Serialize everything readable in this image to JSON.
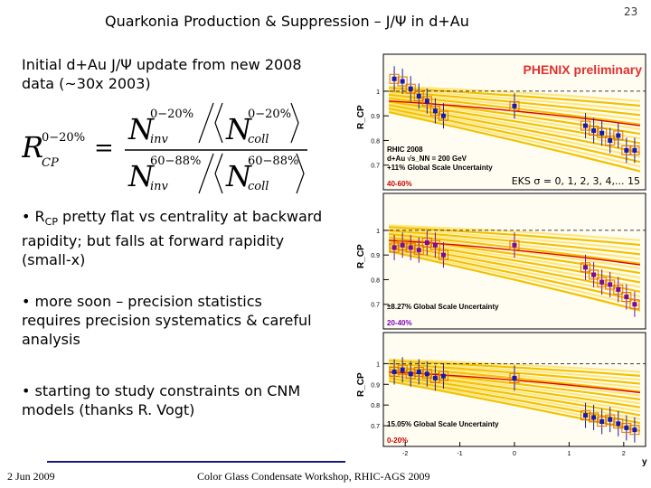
{
  "slide": {
    "title": "Quarkonia Production & Suppression – J/Ψ in d+Au",
    "page_number": "23",
    "intro": "Initial d+Au J/Ψ update from new 2008 data (~30x 2003)",
    "bullets": [
      {
        "pre": "• R",
        "sub": "CP",
        "post": " pretty flat vs centrality at backward rapidity; but falls at forward rapidity (small-x)"
      },
      {
        "pre": "• more soon – precision statistics requires precision systematics & careful analysis",
        "sub": "",
        "post": ""
      },
      {
        "pre": "• starting to study constraints on CNM models (thanks R. Vogt)",
        "sub": "",
        "post": ""
      }
    ],
    "footer_left": "2 Jun 2009",
    "footer_center": "Color Glass Condensate Workshop, RHIC-AGS 2009"
  },
  "formula": {
    "lhs_main": "R",
    "lhs_sup": "0−20%",
    "lhs_sub": "CP",
    "eq": "=",
    "num_n": "N",
    "num_sup": "0−20%",
    "num_sub": "inv",
    "num_ncoll_sup": "0−20%",
    "num_ncoll_sub": "coll",
    "den_n": "N",
    "den_sup": "60−88%",
    "den_sub": "inv",
    "den_ncoll_sup": "60−88%",
    "den_ncoll_sub": "coll"
  },
  "colors": {
    "band": "#f2c200",
    "band_light": "#ffe680",
    "red_line": "#e00000",
    "blue_marker": "#1a1aaa",
    "purple_marker": "#7a0a9a",
    "label_red": "#cc0000",
    "label_purple": "#8000c0"
  },
  "chart_data": [
    {
      "type": "scatter",
      "ylabel": "R_CP",
      "xlabel": "y",
      "xlim": [
        -2.4,
        2.4
      ],
      "ylim": [
        0.6,
        1.15
      ],
      "yticks": [
        0.7,
        0.8,
        0.9,
        1
      ],
      "ytick_labels": [
        "0.7",
        "0.8",
        "0.9",
        "1"
      ],
      "corner_label": "PHENIX preliminary",
      "model_label": "EKS σ = 0, 1, 2, 3, 4,... 15",
      "legend_lines": [
        "RHIC 2008",
        "d+Au √s_NN = 200 GeV",
        "+11% Global Scale Uncertainty"
      ],
      "centrality": "40-60%",
      "marker_color": "#1a1aaa",
      "points": [
        {
          "x": -2.2,
          "y": 1.05
        },
        {
          "x": -2.05,
          "y": 1.04
        },
        {
          "x": -1.9,
          "y": 1.01
        },
        {
          "x": -1.75,
          "y": 0.98
        },
        {
          "x": -1.6,
          "y": 0.96
        },
        {
          "x": -1.45,
          "y": 0.92
        },
        {
          "x": -1.3,
          "y": 0.9
        },
        {
          "x": 0.0,
          "y": 0.94
        },
        {
          "x": 1.3,
          "y": 0.86
        },
        {
          "x": 1.45,
          "y": 0.84
        },
        {
          "x": 1.6,
          "y": 0.83
        },
        {
          "x": 1.75,
          "y": 0.8
        },
        {
          "x": 1.9,
          "y": 0.82
        },
        {
          "x": 2.05,
          "y": 0.76
        },
        {
          "x": 2.2,
          "y": 0.76
        }
      ]
    },
    {
      "type": "scatter",
      "ylabel": "R_CP",
      "xlim": [
        -2.4,
        2.4
      ],
      "ylim": [
        0.6,
        1.15
      ],
      "yticks": [
        0.7,
        0.8,
        0.9,
        1
      ],
      "ytick_labels": [
        "0.7",
        "0.8",
        "0.9",
        "1"
      ],
      "legend_lines": [
        "±8.27% Global Scale Uncertainty"
      ],
      "centrality": "20-40%",
      "marker_color": "#7a0a9a",
      "points": [
        {
          "x": -2.2,
          "y": 0.93
        },
        {
          "x": -2.05,
          "y": 0.94
        },
        {
          "x": -1.9,
          "y": 0.93
        },
        {
          "x": -1.75,
          "y": 0.92
        },
        {
          "x": -1.6,
          "y": 0.95
        },
        {
          "x": -1.45,
          "y": 0.94
        },
        {
          "x": -1.3,
          "y": 0.9
        },
        {
          "x": 0.0,
          "y": 0.94
        },
        {
          "x": 1.3,
          "y": 0.85
        },
        {
          "x": 1.45,
          "y": 0.82
        },
        {
          "x": 1.6,
          "y": 0.79
        },
        {
          "x": 1.75,
          "y": 0.78
        },
        {
          "x": 1.9,
          "y": 0.76
        },
        {
          "x": 2.05,
          "y": 0.73
        },
        {
          "x": 2.2,
          "y": 0.7
        }
      ]
    },
    {
      "type": "scatter",
      "ylabel": "R_CP",
      "xlim": [
        -2.4,
        2.4
      ],
      "ylim": [
        0.6,
        1.15
      ],
      "yticks": [
        0.7,
        0.8,
        0.9,
        1
      ],
      "ytick_labels": [
        "0.7",
        "0.8",
        "0.9",
        "1"
      ],
      "xticks": [
        -2,
        -1,
        0,
        1,
        2
      ],
      "xtick_labels": [
        "-2",
        "-1",
        "0",
        "1",
        "2"
      ],
      "legend_lines": [
        "15.05% Global Scale Uncertainty"
      ],
      "centrality": "0-20%",
      "marker_color": "#1a1aaa",
      "points": [
        {
          "x": -2.2,
          "y": 0.96
        },
        {
          "x": -2.05,
          "y": 0.97
        },
        {
          "x": -1.9,
          "y": 0.95
        },
        {
          "x": -1.75,
          "y": 0.96
        },
        {
          "x": -1.6,
          "y": 0.95
        },
        {
          "x": -1.45,
          "y": 0.93
        },
        {
          "x": -1.3,
          "y": 0.94
        },
        {
          "x": 0.0,
          "y": 0.93
        },
        {
          "x": 1.3,
          "y": 0.75
        },
        {
          "x": 1.45,
          "y": 0.74
        },
        {
          "x": 1.6,
          "y": 0.72
        },
        {
          "x": 1.75,
          "y": 0.73
        },
        {
          "x": 1.9,
          "y": 0.71
        },
        {
          "x": 2.05,
          "y": 0.69
        },
        {
          "x": 2.2,
          "y": 0.68
        }
      ]
    }
  ]
}
